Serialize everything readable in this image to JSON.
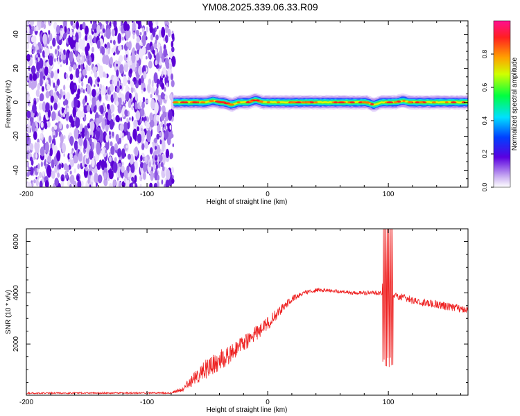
{
  "figure": {
    "title": "YM08.2025.339.06.33.R09",
    "colors": {
      "snr_line": "#ee2222",
      "axis": "#000000"
    }
  },
  "chart_data": [
    {
      "type": "heatmap",
      "title": "YM08.2025.339.06.33.R09",
      "xlabel": "Height of straight line (km)",
      "ylabel": "Frequency (Hz)",
      "xlim": [
        -200,
        166
      ],
      "ylim": [
        -50,
        48
      ],
      "x_ticks": [
        -200,
        -100,
        0,
        100
      ],
      "x_tick_labels": [
        "-200",
        "-100",
        "0",
        "100"
      ],
      "y_ticks": [
        -40,
        -20,
        0,
        20,
        40
      ],
      "y_tick_labels": [
        "-40",
        "-20",
        "0",
        "20",
        "40"
      ],
      "noise_region_x": [
        -200,
        -78
      ],
      "signal_band": {
        "x_start": -78,
        "x_end": 166,
        "center_frequency_hz": 0,
        "half_width_hz": 2.5,
        "bumps": [
          {
            "x": -45,
            "freq_offset": 1
          },
          {
            "x": -30,
            "freq_offset": -1.5
          },
          {
            "x": -10,
            "freq_offset": 1.5
          },
          {
            "x": 88,
            "freq_offset": -1.5
          },
          {
            "x": 112,
            "freq_offset": 1
          }
        ]
      },
      "colorbar": {
        "label": "Normalized spectral amplitude",
        "range": [
          0,
          1
        ],
        "ticks": [
          0.0,
          0.2,
          0.4,
          0.6,
          0.8
        ],
        "tick_labels": [
          "0.0",
          "0.2",
          "0.4",
          "0.6",
          "0.8"
        ]
      }
    },
    {
      "type": "line",
      "xlabel": "Height of straight line (km)",
      "ylabel": "SNR (10 * v/v)",
      "xlim": [
        -200,
        166
      ],
      "ylim": [
        0,
        6500
      ],
      "x_ticks": [
        -200,
        -100,
        0,
        100
      ],
      "x_tick_labels": [
        "-200",
        "-100",
        "0",
        "100"
      ],
      "y_ticks": [
        2000,
        4000,
        6000
      ],
      "y_tick_labels": [
        "2000",
        "4000",
        "6000"
      ],
      "series": [
        {
          "name": "SNR",
          "x": [
            -200,
            -80,
            -70,
            -60,
            -50,
            -40,
            -30,
            -20,
            -10,
            0,
            10,
            20,
            30,
            40,
            50,
            60,
            70,
            80,
            90,
            100,
            110,
            120,
            130,
            140,
            150,
            166
          ],
          "y": [
            80,
            90,
            250,
            700,
            1050,
            1350,
            1650,
            2000,
            2400,
            2800,
            3300,
            3750,
            4000,
            4100,
            4100,
            4050,
            4000,
            4000,
            4000,
            4000,
            3850,
            3700,
            3600,
            3550,
            3450,
            3350
          ],
          "noise_amplitude": [
            60,
            60,
            200,
            600,
            800,
            800,
            700,
            650,
            600,
            550,
            400,
            250,
            150,
            150,
            130,
            130,
            150,
            150,
            200,
            200,
            300,
            300,
            300,
            300,
            300,
            300
          ],
          "spike": {
            "x_range": [
              95,
              104
            ],
            "max": 6500,
            "min": 1100
          }
        }
      ]
    }
  ]
}
